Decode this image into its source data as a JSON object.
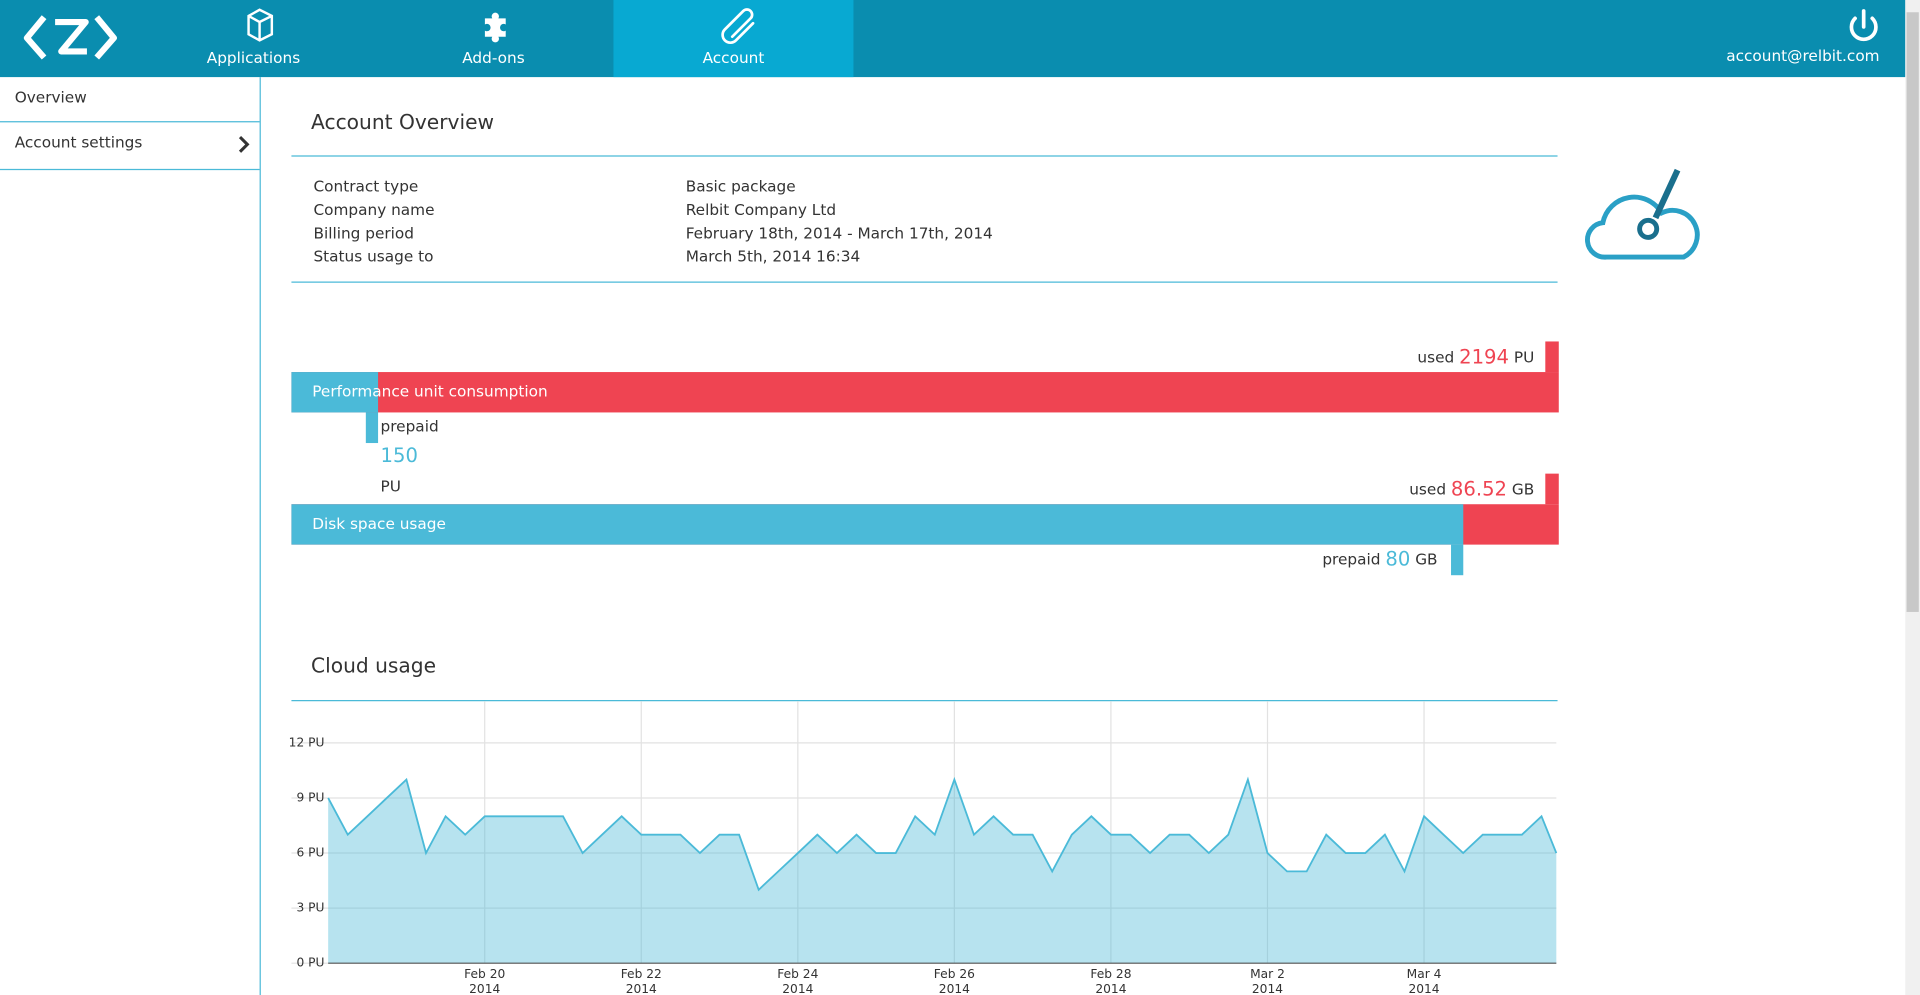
{
  "nav": {
    "tabs": [
      "Applications",
      "Add-ons",
      "Account"
    ],
    "active_tab": 2,
    "user": "account@relbit.com"
  },
  "sidebar": {
    "items": [
      "Overview",
      "Account settings"
    ]
  },
  "overview": {
    "title": "Account Overview",
    "rows": [
      [
        "Contract type",
        "Basic package"
      ],
      [
        "Company name",
        "Relbit Company Ltd"
      ],
      [
        "Billing period",
        "February 18th, 2014 - March 17th, 2014"
      ],
      [
        "Status usage to",
        "March 5th, 2014 16:34"
      ]
    ]
  },
  "usage": [
    {
      "label": "Performance unit consumption",
      "used_label": "used",
      "used": 2194,
      "prepaid_label": "prepaid",
      "prepaid": 150,
      "unit": "PU"
    },
    {
      "label": "Disk space usage",
      "used_label": "used",
      "used": 86.52,
      "prepaid_label": "prepaid",
      "prepaid": 80,
      "unit": "GB"
    }
  ],
  "chart_data": {
    "type": "area",
    "title": "Cloud usage",
    "color": "#4bbad8",
    "grid": true,
    "x": [
      18,
      18.25,
      18.5,
      18.75,
      19,
      19.25,
      19.5,
      19.75,
      20,
      20.25,
      20.5,
      20.75,
      21,
      21.25,
      21.5,
      21.75,
      22,
      22.25,
      22.5,
      22.75,
      23,
      23.25,
      23.5,
      23.75,
      24,
      24.25,
      24.5,
      24.75,
      25,
      25.25,
      25.5,
      25.75,
      26,
      26.25,
      26.5,
      26.75,
      27,
      27.25,
      27.5,
      27.75,
      28,
      28.25,
      28.5,
      28.75,
      29,
      29.25,
      29.5,
      29.75,
      30,
      30.25,
      30.5,
      30.75,
      31,
      31.25,
      31.5,
      31.75,
      32,
      32.25,
      32.5,
      32.75,
      33,
      33.25,
      33.5,
      33.69
    ],
    "values": [
      9,
      7,
      8,
      9,
      10,
      6,
      8,
      7,
      8,
      8,
      8,
      8,
      8,
      6,
      7,
      8,
      7,
      7,
      7,
      6,
      7,
      7,
      4,
      5,
      6,
      7,
      6,
      7,
      6,
      6,
      8,
      7,
      10,
      7,
      8,
      7,
      7,
      5,
      7,
      8,
      7,
      7,
      6,
      7,
      7,
      6,
      7,
      10,
      6,
      5,
      5,
      7,
      6,
      6,
      7,
      5,
      8,
      7,
      6,
      7,
      7,
      7,
      8,
      6
    ],
    "xlim": [
      18,
      33.69
    ],
    "ylim": [
      0,
      12
    ],
    "xticks": [
      {
        "value": 20,
        "label": "Feb 20\n2014"
      },
      {
        "value": 22,
        "label": "Feb 22\n2014"
      },
      {
        "value": 24,
        "label": "Feb 24\n2014"
      },
      {
        "value": 26,
        "label": "Feb 26\n2014"
      },
      {
        "value": 28,
        "label": "Feb 28\n2014"
      },
      {
        "value": 30,
        "label": "Mar 2\n2014"
      },
      {
        "value": 32,
        "label": "Mar 4\n2014"
      }
    ],
    "yticks": [
      {
        "value": 0,
        "label": "0 PU"
      },
      {
        "value": 3,
        "label": "3 PU"
      },
      {
        "value": 6,
        "label": "6 PU"
      },
      {
        "value": 9,
        "label": "9 PU"
      },
      {
        "value": 12,
        "label": "12 PU"
      }
    ]
  }
}
